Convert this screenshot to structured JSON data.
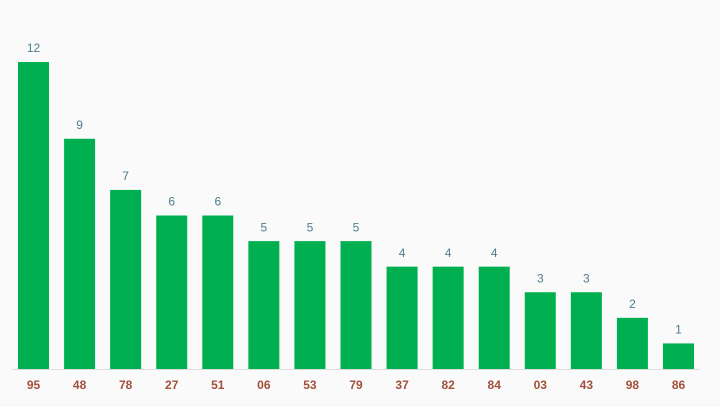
{
  "chart_data": {
    "type": "bar",
    "categories": [
      "95",
      "48",
      "78",
      "27",
      "51",
      "06",
      "53",
      "79",
      "37",
      "82",
      "84",
      "03",
      "43",
      "98",
      "86"
    ],
    "values": [
      12,
      9,
      7,
      6,
      6,
      5,
      5,
      5,
      4,
      4,
      4,
      3,
      3,
      2,
      1
    ],
    "color": "#00b050"
  }
}
